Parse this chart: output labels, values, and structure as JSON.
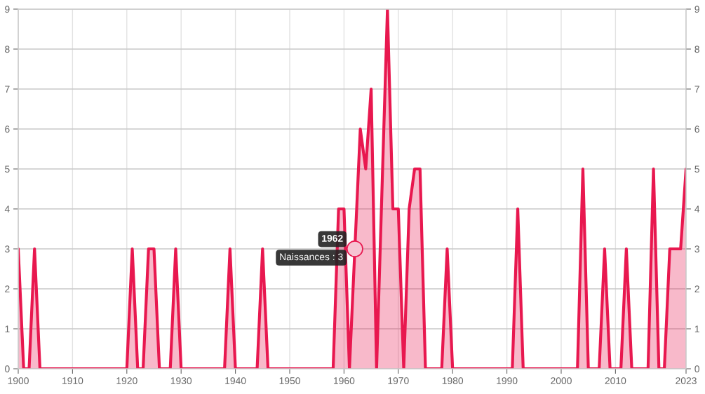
{
  "chart_data": {
    "type": "area",
    "series": [
      {
        "color": "#e8184f",
        "x": [
          1900,
          1901,
          1902,
          1903,
          1904,
          1905,
          1906,
          1907,
          1908,
          1909,
          1910,
          1911,
          1912,
          1913,
          1914,
          1915,
          1916,
          1917,
          1918,
          1919,
          1920,
          1921,
          1922,
          1923,
          1924,
          1925,
          1926,
          1927,
          1928,
          1929,
          1930,
          1931,
          1932,
          1933,
          1934,
          1935,
          1936,
          1937,
          1938,
          1939,
          1940,
          1941,
          1942,
          1943,
          1944,
          1945,
          1946,
          1947,
          1948,
          1949,
          1950,
          1951,
          1952,
          1953,
          1954,
          1955,
          1956,
          1957,
          1958,
          1959,
          1960,
          1961,
          1962,
          1963,
          1964,
          1965,
          1966,
          1968,
          1969,
          1970,
          1971,
          1972,
          1973,
          1974,
          1975,
          1976,
          1977,
          1978,
          1979,
          1980,
          1981,
          1982,
          1983,
          1984,
          1985,
          1986,
          1987,
          1988,
          1989,
          1990,
          1991,
          1992,
          1993,
          1994,
          1995,
          1996,
          1997,
          1998,
          1999,
          2000,
          2001,
          2002,
          2003,
          2004,
          2005,
          2006,
          2007,
          2008,
          2009,
          2010,
          2011,
          2012,
          2013,
          2014,
          2015,
          2016,
          2017,
          2018,
          2019,
          2020,
          2021,
          2022,
          2023
        ],
        "values": [
          3,
          0,
          0,
          3,
          0,
          0,
          0,
          0,
          0,
          0,
          0,
          0,
          0,
          0,
          0,
          0,
          0,
          0,
          0,
          0,
          0,
          3,
          0,
          0,
          3,
          3,
          0,
          0,
          0,
          3,
          0,
          0,
          0,
          0,
          0,
          0,
          0,
          0,
          0,
          3,
          0,
          0,
          0,
          0,
          0,
          3,
          0,
          0,
          0,
          0,
          0,
          0,
          0,
          0,
          0,
          0,
          0,
          0,
          0,
          4,
          4,
          0,
          3,
          6,
          5,
          7,
          0,
          9,
          4,
          4,
          0,
          4,
          5,
          5,
          0,
          0,
          0,
          0,
          3,
          0,
          0,
          0,
          0,
          0,
          0,
          0,
          0,
          0,
          0,
          0,
          0,
          4,
          0,
          0,
          0,
          0,
          0,
          0,
          0,
          0,
          0,
          0,
          0,
          5,
          0,
          0,
          0,
          3,
          0,
          0,
          0,
          3,
          0,
          0,
          0,
          0,
          5,
          0,
          0,
          3,
          3,
          3,
          5
        ]
      }
    ],
    "xlim": [
      1900,
      2023
    ],
    "xticks": [
      1900,
      1910,
      1920,
      1930,
      1940,
      1950,
      1960,
      1970,
      1980,
      1990,
      2000,
      2010,
      2023
    ],
    "ylim": [
      0,
      9
    ],
    "yticks": [
      0,
      1,
      2,
      3,
      4,
      5,
      6,
      7,
      8,
      9
    ],
    "y2lim": [
      0,
      9
    ],
    "y2ticks": [
      0,
      1,
      2,
      3,
      4,
      5,
      6,
      7,
      8,
      9
    ],
    "grid": true,
    "annotations": [
      {
        "text": "1962",
        "x": 1962,
        "y": 3
      },
      {
        "text": "Naissances : 3",
        "x": 1962,
        "y": 3
      }
    ]
  }
}
